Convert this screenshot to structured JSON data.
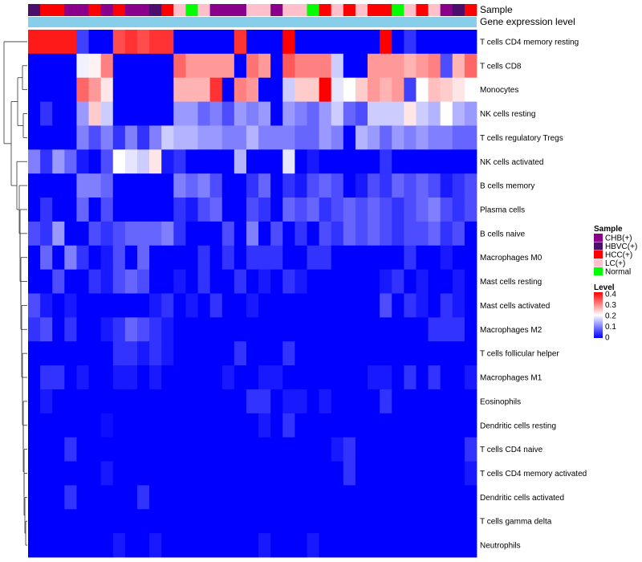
{
  "chart_data": {
    "type": "heatmap",
    "title": "",
    "annotation_labels": {
      "sample": "Sample",
      "level": "Gene expression level"
    },
    "rows": [
      "T cells CD4 memory resting",
      "T cells CD8",
      "Monocytes",
      "NK cells resting",
      "T cells regulatory  Tregs",
      "NK cells activated",
      "B cells memory",
      "Plasma cells",
      "B cells naive",
      "Macrophages M0",
      "Mast cells resting",
      "Mast cells activated",
      "Macrophages M2",
      "T cells follicular helper",
      "Macrophages M1",
      "Eosinophils",
      "Dendritic cells resting",
      "T cells CD4 naive",
      "T cells CD4 memory activated",
      "Dendritic cells activated",
      "T cells gamma delta",
      "Neutrophils"
    ],
    "sample_groups": [
      "HBVC(+)",
      "HCC(+)",
      "HCC(+)",
      "CHB(+)",
      "CHB(+)",
      "HCC(+)",
      "CHB(+)",
      "HCC(+)",
      "CHB(+)",
      "CHB(+)",
      "HBVC(+)",
      "HCC(+)",
      "LC(+)",
      "Normal",
      "LC(+)",
      "CHB(+)",
      "CHB(+)",
      "CHB(+)",
      "LC(+)",
      "LC(+)",
      "CHB(+)",
      "LC(+)",
      "LC(+)",
      "Normal",
      "HCC(+)",
      "LC(+)",
      "HCC(+)",
      "LC(+)",
      "HCC(+)",
      "HCC(+)",
      "Normal",
      "LC(+)",
      "HCC(+)",
      "LC(+)",
      "CHB(+)",
      "HBVC(+)",
      "HCC(+)"
    ],
    "values": [
      [
        0.38,
        0.38,
        0.38,
        0.38,
        0.05,
        0.0,
        0.0,
        0.34,
        0.36,
        0.34,
        0.36,
        0.36,
        0.0,
        0.0,
        0.0,
        0.0,
        0.0,
        0.36,
        0.0,
        0.0,
        0.0,
        0.42,
        0.0,
        0.0,
        0.0,
        0.0,
        0.0,
        0.0,
        0.0,
        0.42,
        0.0,
        0.04,
        0.0,
        0.0,
        0.0,
        0.0,
        0.0
      ],
      [
        0.0,
        0.0,
        0.0,
        0.0,
        0.19,
        0.21,
        0.3,
        0.0,
        0.0,
        0.0,
        0.0,
        0.0,
        0.32,
        0.28,
        0.28,
        0.28,
        0.28,
        0.0,
        0.31,
        0.28,
        0.0,
        0.33,
        0.3,
        0.3,
        0.3,
        0.16,
        0.0,
        0.0,
        0.28,
        0.28,
        0.28,
        0.26,
        0.28,
        0.3,
        0.06,
        0.26,
        0.32
      ],
      [
        0.0,
        0.0,
        0.0,
        0.0,
        0.32,
        0.28,
        0.22,
        0.0,
        0.0,
        0.0,
        0.0,
        0.0,
        0.26,
        0.26,
        0.26,
        0.36,
        0.0,
        0.3,
        0.28,
        0.0,
        0.0,
        0.16,
        0.24,
        0.24,
        0.4,
        0.18,
        0.2,
        0.24,
        0.28,
        0.26,
        0.28,
        0.05,
        0.2,
        0.25,
        0.24,
        0.22,
        0.2
      ],
      [
        0.0,
        0.04,
        0.0,
        0.0,
        0.12,
        0.24,
        0.16,
        0.0,
        0.0,
        0.0,
        0.0,
        0.0,
        0.12,
        0.12,
        0.08,
        0.1,
        0.06,
        0.12,
        0.1,
        0.12,
        0.0,
        0.12,
        0.1,
        0.08,
        0.12,
        0.16,
        0.08,
        0.06,
        0.16,
        0.16,
        0.16,
        0.22,
        0.16,
        0.14,
        0.2,
        0.14,
        0.12
      ],
      [
        0.0,
        0.0,
        0.0,
        0.0,
        0.1,
        0.06,
        0.1,
        0.04,
        0.1,
        0.04,
        0.1,
        0.16,
        0.14,
        0.14,
        0.12,
        0.12,
        0.1,
        0.1,
        0.14,
        0.1,
        0.1,
        0.1,
        0.08,
        0.08,
        0.12,
        0.1,
        0.0,
        0.14,
        0.12,
        0.08,
        0.12,
        0.1,
        0.12,
        0.1,
        0.1,
        0.08,
        0.08
      ],
      [
        0.1,
        0.04,
        0.12,
        0.08,
        0.02,
        0.0,
        0.06,
        0.2,
        0.18,
        0.16,
        0.22,
        0.02,
        0.04,
        0.0,
        0.0,
        0.0,
        0.0,
        0.14,
        0.0,
        0.0,
        0.0,
        0.18,
        0.0,
        0.02,
        0.0,
        0.0,
        0.0,
        0.0,
        0.0,
        0.04,
        0.0,
        0.0,
        0.0,
        0.0,
        0.0,
        0.0,
        0.0
      ],
      [
        0.0,
        0.0,
        0.0,
        0.0,
        0.1,
        0.1,
        0.08,
        0.0,
        0.0,
        0.0,
        0.0,
        0.0,
        0.1,
        0.08,
        0.1,
        0.06,
        0.0,
        0.0,
        0.04,
        0.08,
        0.0,
        0.04,
        0.02,
        0.06,
        0.08,
        0.06,
        0.0,
        0.02,
        0.06,
        0.04,
        0.08,
        0.06,
        0.08,
        0.06,
        0.02,
        0.04,
        0.06
      ],
      [
        0.0,
        0.04,
        0.0,
        0.0,
        0.08,
        0.0,
        0.06,
        0.0,
        0.0,
        0.0,
        0.0,
        0.0,
        0.04,
        0.02,
        0.06,
        0.08,
        0.0,
        0.0,
        0.06,
        0.04,
        0.0,
        0.08,
        0.06,
        0.08,
        0.04,
        0.06,
        0.08,
        0.06,
        0.08,
        0.06,
        0.04,
        0.06,
        0.08,
        0.1,
        0.06,
        0.04,
        0.06
      ],
      [
        0.06,
        0.04,
        0.12,
        0.0,
        0.0,
        0.06,
        0.04,
        0.06,
        0.08,
        0.08,
        0.08,
        0.1,
        0.04,
        0.0,
        0.0,
        0.0,
        0.06,
        0.0,
        0.1,
        0.0,
        0.06,
        0.0,
        0.04,
        0.0,
        0.06,
        0.04,
        0.08,
        0.06,
        0.08,
        0.06,
        0.04,
        0.06,
        0.06,
        0.08,
        0.04,
        0.06,
        0.0
      ],
      [
        0.0,
        0.08,
        0.0,
        0.1,
        0.04,
        0.0,
        0.02,
        0.06,
        0.0,
        0.08,
        0.0,
        0.0,
        0.0,
        0.0,
        0.04,
        0.0,
        0.04,
        0.0,
        0.04,
        0.04,
        0.04,
        0.0,
        0.0,
        0.04,
        0.04,
        0.0,
        0.0,
        0.0,
        0.0,
        0.0,
        0.0,
        0.04,
        0.0,
        0.0,
        0.02,
        0.0,
        0.0
      ],
      [
        0.0,
        0.0,
        0.06,
        0.0,
        0.0,
        0.04,
        0.02,
        0.06,
        0.08,
        0.06,
        0.0,
        0.0,
        0.02,
        0.0,
        0.04,
        0.0,
        0.0,
        0.04,
        0.0,
        0.02,
        0.0,
        0.04,
        0.02,
        0.0,
        0.0,
        0.0,
        0.0,
        0.0,
        0.0,
        0.02,
        0.04,
        0.0,
        0.02,
        0.0,
        0.0,
        0.02,
        0.0
      ],
      [
        0.06,
        0.02,
        0.0,
        0.02,
        0.0,
        0.0,
        0.0,
        0.0,
        0.0,
        0.0,
        0.02,
        0.04,
        0.0,
        0.02,
        0.0,
        0.04,
        0.0,
        0.0,
        0.02,
        0.0,
        0.0,
        0.0,
        0.0,
        0.0,
        0.0,
        0.0,
        0.0,
        0.0,
        0.0,
        0.06,
        0.0,
        0.04,
        0.02,
        0.0,
        0.04,
        0.02,
        0.0
      ],
      [
        0.04,
        0.06,
        0.0,
        0.04,
        0.0,
        0.0,
        0.02,
        0.04,
        0.08,
        0.06,
        0.04,
        0.02,
        0.0,
        0.0,
        0.0,
        0.0,
        0.0,
        0.0,
        0.0,
        0.0,
        0.0,
        0.0,
        0.0,
        0.0,
        0.0,
        0.0,
        0.0,
        0.0,
        0.0,
        0.0,
        0.0,
        0.0,
        0.0,
        0.04,
        0.04,
        0.04,
        0.0
      ],
      [
        0.0,
        0.0,
        0.0,
        0.0,
        0.0,
        0.0,
        0.0,
        0.04,
        0.04,
        0.02,
        0.04,
        0.02,
        0.0,
        0.0,
        0.0,
        0.0,
        0.0,
        0.04,
        0.0,
        0.0,
        0.0,
        0.04,
        0.0,
        0.0,
        0.0,
        0.0,
        0.0,
        0.0,
        0.0,
        0.0,
        0.0,
        0.0,
        0.0,
        0.0,
        0.0,
        0.0,
        0.0
      ],
      [
        0.0,
        0.04,
        0.04,
        0.0,
        0.02,
        0.0,
        0.0,
        0.02,
        0.02,
        0.0,
        0.02,
        0.0,
        0.0,
        0.0,
        0.0,
        0.0,
        0.02,
        0.0,
        0.0,
        0.02,
        0.02,
        0.0,
        0.0,
        0.0,
        0.0,
        0.0,
        0.0,
        0.0,
        0.02,
        0.02,
        0.0,
        0.04,
        0.0,
        0.04,
        0.0,
        0.0,
        0.02
      ],
      [
        0.0,
        0.02,
        0.0,
        0.0,
        0.0,
        0.0,
        0.0,
        0.0,
        0.0,
        0.0,
        0.0,
        0.0,
        0.0,
        0.0,
        0.0,
        0.0,
        0.0,
        0.0,
        0.04,
        0.04,
        0.0,
        0.02,
        0.02,
        0.0,
        0.02,
        0.0,
        0.0,
        0.0,
        0.0,
        0.04,
        0.0,
        0.0,
        0.0,
        0.0,
        0.0,
        0.0,
        0.0
      ],
      [
        0.0,
        0.0,
        0.0,
        0.0,
        0.0,
        0.0,
        0.01,
        0.0,
        0.0,
        0.0,
        0.0,
        0.0,
        0.0,
        0.0,
        0.0,
        0.0,
        0.0,
        0.0,
        0.0,
        0.02,
        0.0,
        0.04,
        0.0,
        0.0,
        0.0,
        0.0,
        0.0,
        0.0,
        0.0,
        0.0,
        0.0,
        0.0,
        0.0,
        0.0,
        0.0,
        0.0,
        0.0
      ],
      [
        0.0,
        0.0,
        0.0,
        0.04,
        0.0,
        0.0,
        0.0,
        0.0,
        0.0,
        0.0,
        0.0,
        0.0,
        0.0,
        0.0,
        0.0,
        0.0,
        0.0,
        0.0,
        0.0,
        0.0,
        0.0,
        0.0,
        0.0,
        0.0,
        0.0,
        0.02,
        0.04,
        0.0,
        0.0,
        0.0,
        0.0,
        0.0,
        0.0,
        0.0,
        0.0,
        0.0,
        0.04
      ],
      [
        0.0,
        0.0,
        0.0,
        0.0,
        0.0,
        0.0,
        0.02,
        0.0,
        0.0,
        0.0,
        0.0,
        0.0,
        0.0,
        0.0,
        0.0,
        0.0,
        0.0,
        0.0,
        0.0,
        0.0,
        0.0,
        0.0,
        0.0,
        0.0,
        0.0,
        0.0,
        0.04,
        0.0,
        0.0,
        0.0,
        0.0,
        0.0,
        0.0,
        0.0,
        0.0,
        0.0,
        0.02
      ],
      [
        0.0,
        0.0,
        0.0,
        0.04,
        0.0,
        0.0,
        0.0,
        0.0,
        0.0,
        0.04,
        0.0,
        0.0,
        0.0,
        0.0,
        0.0,
        0.0,
        0.0,
        0.0,
        0.0,
        0.0,
        0.0,
        0.0,
        0.0,
        0.0,
        0.0,
        0.0,
        0.0,
        0.0,
        0.0,
        0.0,
        0.0,
        0.0,
        0.0,
        0.0,
        0.0,
        0.0,
        0.0
      ],
      [
        0.0,
        0.0,
        0.0,
        0.0,
        0.0,
        0.0,
        0.0,
        0.0,
        0.0,
        0.0,
        0.0,
        0.0,
        0.0,
        0.0,
        0.0,
        0.0,
        0.0,
        0.0,
        0.0,
        0.0,
        0.0,
        0.0,
        0.0,
        0.0,
        0.0,
        0.0,
        0.0,
        0.0,
        0.0,
        0.0,
        0.0,
        0.0,
        0.0,
        0.0,
        0.0,
        0.0,
        0.0
      ],
      [
        0.0,
        0.0,
        0.0,
        0.0,
        0.0,
        0.0,
        0.0,
        0.02,
        0.0,
        0.0,
        0.02,
        0.0,
        0.0,
        0.0,
        0.0,
        0.0,
        0.0,
        0.0,
        0.0,
        0.02,
        0.0,
        0.0,
        0.0,
        0.02,
        0.0,
        0.0,
        0.0,
        0.0,
        0.0,
        0.0,
        0.0,
        0.0,
        0.0,
        0.0,
        0.0,
        0.0,
        0.0
      ]
    ],
    "color_scale": {
      "min": 0,
      "max": 0.4,
      "stops": [
        {
          "value": 0,
          "color": "#0000ff"
        },
        {
          "value": 0.2,
          "color": "#ffffff"
        },
        {
          "value": 0.4,
          "color": "#ff0000"
        }
      ]
    },
    "sample_legend": {
      "title": "Sample",
      "entries": [
        {
          "label": "CHB(+)",
          "color": "#8b008b"
        },
        {
          "label": "HBVC(+)",
          "color": "#4b0f6b"
        },
        {
          "label": "HCC(+)",
          "color": "#ff0000"
        },
        {
          "label": "LC(+)",
          "color": "#ffc0cb"
        },
        {
          "label": "Normal",
          "color": "#00ff00"
        }
      ]
    },
    "level_legend": {
      "title": "Level",
      "ticks": [
        "0.4",
        "0.3",
        "0.2",
        "0.1",
        "0"
      ]
    },
    "level_bar_color": "#87ceeb",
    "dendrogram": true,
    "legend_position": "right"
  }
}
